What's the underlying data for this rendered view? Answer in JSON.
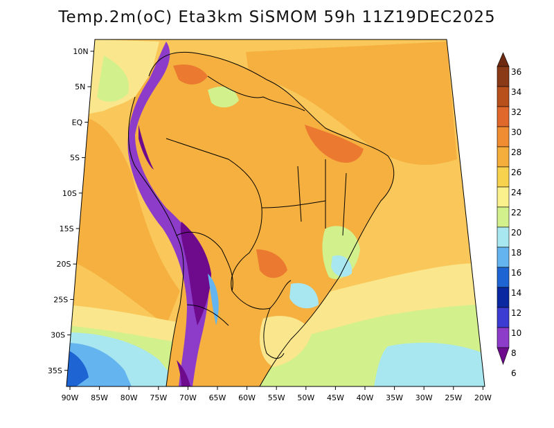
{
  "title": "Temp.2m(oC) Eta3km SiSMOM 59h 11Z19DEC2025",
  "y_ticks": [
    "10N",
    "5N",
    "EQ",
    "5S",
    "10S",
    "15S",
    "20S",
    "25S",
    "30S",
    "35S"
  ],
  "x_ticks": [
    "90W",
    "85W",
    "80W",
    "75W",
    "70W",
    "65W",
    "60W",
    "55W",
    "50W",
    "45W",
    "40W",
    "35W",
    "30W",
    "25W",
    "20W"
  ],
  "colorbar": {
    "labels": [
      "36",
      "34",
      "32",
      "30",
      "28",
      "26",
      "24",
      "22",
      "20",
      "18",
      "16",
      "14",
      "12",
      "10",
      "8",
      "6"
    ],
    "colors": [
      "#6e2a10",
      "#8b3a18",
      "#b8501c",
      "#e0682a",
      "#f08c32",
      "#f5ad3c",
      "#f7d24e",
      "#faf08c",
      "#d2f08c",
      "#a8e6f0",
      "#64b4f0",
      "#1e64d2",
      "#0a28a0",
      "#3c3cd2",
      "#8c3cc8",
      "#6e0a8c"
    ]
  },
  "field_colors": {
    "ocean_warm": "#fac85a",
    "ocean_mid": "#fae68c",
    "land_base": "#f5b040",
    "hot": "#eb7a30",
    "cool_green": "#d2f08c",
    "cool_blue": "#a8e6f0",
    "mid_blue": "#64b4f0",
    "deep_blue": "#1e64d2",
    "andes_dark": "#6e0a8c",
    "andes_violet": "#8c3cc8"
  }
}
